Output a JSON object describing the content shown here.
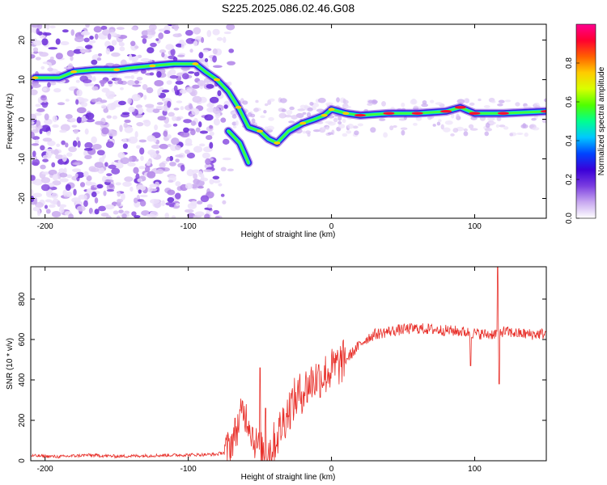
{
  "title": "S225.2025.086.02.46.G08",
  "chart_data": [
    {
      "type": "heatmap",
      "xlabel": "Height of straight line (km)",
      "ylabel": "Frequency (Hz)",
      "xlim": [
        -210,
        150
      ],
      "ylim": [
        -25,
        24
      ],
      "xticks": [
        -200,
        -100,
        0,
        100
      ],
      "yticks": [
        -20,
        -10,
        0,
        10,
        20
      ],
      "colorbar": {
        "label": "Normalized spectral amplitude",
        "range": [
          0,
          1
        ],
        "ticks": [
          0.0,
          0.2,
          0.4,
          0.6,
          0.8
        ],
        "colors": [
          "#ffffff",
          "#c8a8f0",
          "#7a3de0",
          "#3a00d8",
          "#0044ff",
          "#00c8ff",
          "#00ff90",
          "#50ff00",
          "#d8ff00",
          "#ffcc00",
          "#ff6000",
          "#ff0030",
          "#ff0090"
        ]
      },
      "ridge": [
        {
          "x": -207,
          "y": 10.5
        },
        {
          "x": -190,
          "y": 10.5
        },
        {
          "x": -180,
          "y": 12
        },
        {
          "x": -165,
          "y": 12.5
        },
        {
          "x": -150,
          "y": 12.5
        },
        {
          "x": -140,
          "y": 13
        },
        {
          "x": -125,
          "y": 13.5
        },
        {
          "x": -110,
          "y": 14
        },
        {
          "x": -95,
          "y": 14
        },
        {
          "x": -88,
          "y": 12
        },
        {
          "x": -80,
          "y": 10
        },
        {
          "x": -72,
          "y": 7
        },
        {
          "x": -65,
          "y": 3
        },
        {
          "x": -58,
          "y": -2
        },
        {
          "x": -50,
          "y": -3
        },
        {
          "x": -44,
          "y": -5
        },
        {
          "x": -38,
          "y": -6
        },
        {
          "x": -30,
          "y": -3
        },
        {
          "x": -20,
          "y": -1
        },
        {
          "x": -12,
          "y": 0
        },
        {
          "x": -5,
          "y": 1
        },
        {
          "x": 0,
          "y": 2.5
        },
        {
          "x": 10,
          "y": 1.5
        },
        {
          "x": 20,
          "y": 1
        },
        {
          "x": 40,
          "y": 1.5
        },
        {
          "x": 60,
          "y": 1.5
        },
        {
          "x": 80,
          "y": 2
        },
        {
          "x": 90,
          "y": 3
        },
        {
          "x": 100,
          "y": 1.5
        },
        {
          "x": 120,
          "y": 1.5
        },
        {
          "x": 150,
          "y": 2
        }
      ],
      "ridge_branch": [
        {
          "x": -72,
          "y": -3
        },
        {
          "x": -64,
          "y": -6
        },
        {
          "x": -58,
          "y": -11
        }
      ]
    },
    {
      "type": "line",
      "xlabel": "Height of straight line (km)",
      "ylabel": "SNR (10 * v/v)",
      "xlim": [
        -210,
        150
      ],
      "ylim": [
        0,
        960
      ],
      "xticks": [
        -200,
        -100,
        0,
        100
      ],
      "yticks": [
        0,
        200,
        400,
        600,
        800
      ],
      "color": "#e8302a",
      "series": [
        {
          "values": [
            [
              -210,
              25
            ],
            [
              -190,
              20
            ],
            [
              -170,
              28
            ],
            [
              -150,
              22
            ],
            [
              -130,
              25
            ],
            [
              -110,
              28
            ],
            [
              -90,
              30
            ],
            [
              -80,
              32
            ],
            [
              -74,
              45
            ],
            [
              -70,
              90
            ],
            [
              -66,
              160
            ],
            [
              -62,
              250
            ],
            [
              -58,
              200
            ],
            [
              -54,
              100
            ],
            [
              -50,
              60
            ],
            [
              -46,
              45
            ],
            [
              -42,
              60
            ],
            [
              -38,
              120
            ],
            [
              -34,
              190
            ],
            [
              -30,
              250
            ],
            [
              -26,
              300
            ],
            [
              -22,
              330
            ],
            [
              -18,
              360
            ],
            [
              -14,
              390
            ],
            [
              -10,
              410
            ],
            [
              -6,
              420
            ],
            [
              -2,
              440
            ],
            [
              2,
              460
            ],
            [
              6,
              480
            ],
            [
              10,
              500
            ],
            [
              14,
              530
            ],
            [
              18,
              560
            ],
            [
              22,
              590
            ],
            [
              26,
              610
            ],
            [
              30,
              625
            ],
            [
              40,
              640
            ],
            [
              50,
              650
            ],
            [
              60,
              655
            ],
            [
              70,
              650
            ],
            [
              80,
              645
            ],
            [
              90,
              640
            ],
            [
              100,
              630
            ],
            [
              110,
              625
            ],
            [
              115,
              630
            ],
            [
              120,
              640
            ],
            [
              130,
              630
            ],
            [
              140,
              625
            ],
            [
              150,
              630
            ]
          ]
        }
      ],
      "spikes": [
        [
          -50,
          460
        ],
        [
          -46,
          260
        ],
        [
          97,
          470
        ],
        [
          116,
          960
        ],
        [
          117,
          380
        ]
      ]
    }
  ]
}
